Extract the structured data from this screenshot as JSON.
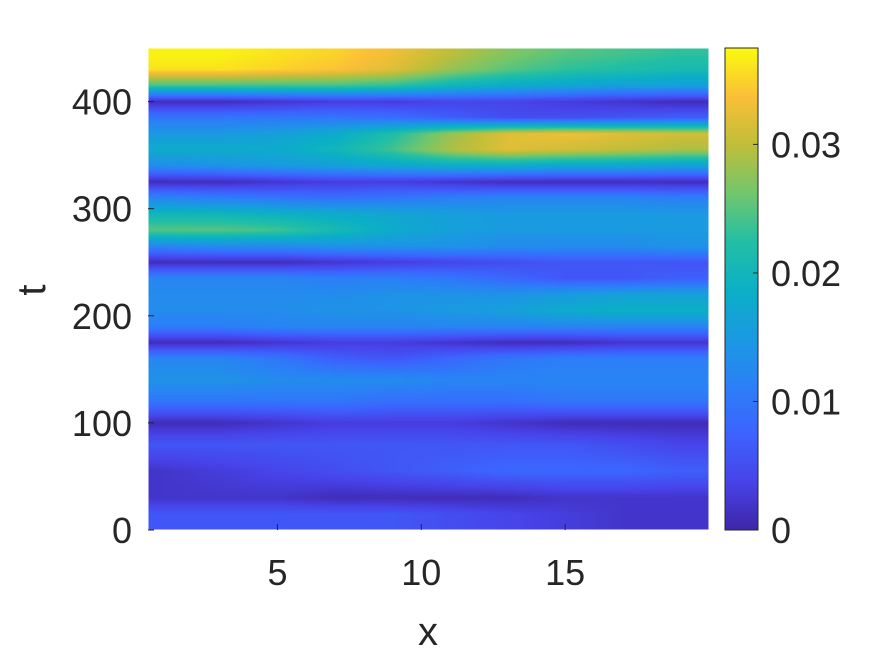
{
  "chart_data": {
    "type": "heatmap",
    "title": "",
    "xlabel": "x",
    "ylabel": "t",
    "xlim": [
      0.5,
      20
    ],
    "ylim": [
      0,
      450
    ],
    "x_ticks": [
      "5",
      "10",
      "15"
    ],
    "x_tick_values": [
      5,
      10,
      15
    ],
    "y_ticks": [
      "0",
      "100",
      "200",
      "300",
      "400"
    ],
    "y_tick_values": [
      0,
      100,
      200,
      300,
      400
    ],
    "colorbar": {
      "colormap": "parula",
      "range": [
        0,
        0.0375
      ],
      "ticks": [
        "0",
        "0.01",
        "0.02",
        "0.03"
      ],
      "tick_values": [
        0,
        0.01,
        0.02,
        0.03
      ]
    },
    "x": [
      1,
      3,
      5,
      7,
      9,
      11,
      13,
      15,
      17,
      19
    ],
    "y": [
      15,
      30,
      55,
      80,
      100,
      120,
      140,
      160,
      175,
      190,
      205,
      220,
      235,
      250,
      265,
      280,
      295,
      310,
      325,
      340,
      355,
      370,
      385,
      400,
      415,
      430,
      445
    ],
    "z": [
      [
        0.006,
        0.006,
        0.006,
        0.006,
        0.006,
        0.005,
        0.004,
        0.003,
        0.002,
        0.002
      ],
      [
        0.002,
        0.002,
        0.002,
        0.001,
        0.001,
        0.001,
        0.001,
        0.002,
        0.002,
        0.002
      ],
      [
        0.002,
        0.003,
        0.004,
        0.005,
        0.006,
        0.007,
        0.008,
        0.008,
        0.008,
        0.007
      ],
      [
        0.006,
        0.006,
        0.006,
        0.006,
        0.006,
        0.006,
        0.006,
        0.006,
        0.005,
        0.004
      ],
      [
        0.001,
        0.001,
        0.002,
        0.003,
        0.003,
        0.003,
        0.002,
        0.001,
        0.001,
        0.001
      ],
      [
        0.01,
        0.01,
        0.01,
        0.01,
        0.009,
        0.009,
        0.009,
        0.01,
        0.01,
        0.01
      ],
      [
        0.014,
        0.014,
        0.013,
        0.013,
        0.013,
        0.012,
        0.012,
        0.012,
        0.012,
        0.012
      ],
      [
        0.012,
        0.012,
        0.01,
        0.007,
        0.006,
        0.008,
        0.01,
        0.011,
        0.011,
        0.011
      ],
      [
        0.001,
        0.001,
        0.002,
        0.003,
        0.003,
        0.002,
        0.001,
        0.001,
        0.002,
        0.002
      ],
      [
        0.011,
        0.011,
        0.012,
        0.012,
        0.012,
        0.012,
        0.012,
        0.012,
        0.012,
        0.012
      ],
      [
        0.013,
        0.013,
        0.013,
        0.014,
        0.014,
        0.015,
        0.016,
        0.018,
        0.019,
        0.019
      ],
      [
        0.013,
        0.013,
        0.013,
        0.013,
        0.014,
        0.014,
        0.014,
        0.015,
        0.016,
        0.016
      ],
      [
        0.012,
        0.012,
        0.012,
        0.011,
        0.011,
        0.01,
        0.008,
        0.006,
        0.006,
        0.007
      ],
      [
        0.001,
        0.001,
        0.001,
        0.002,
        0.003,
        0.004,
        0.005,
        0.006,
        0.006,
        0.006
      ],
      [
        0.012,
        0.013,
        0.013,
        0.014,
        0.014,
        0.014,
        0.013,
        0.013,
        0.013,
        0.014
      ],
      [
        0.025,
        0.025,
        0.024,
        0.021,
        0.018,
        0.016,
        0.015,
        0.015,
        0.015,
        0.015
      ],
      [
        0.02,
        0.02,
        0.019,
        0.018,
        0.017,
        0.016,
        0.015,
        0.015,
        0.015,
        0.015
      ],
      [
        0.012,
        0.011,
        0.01,
        0.009,
        0.01,
        0.011,
        0.012,
        0.012,
        0.012,
        0.011
      ],
      [
        0.001,
        0.001,
        0.002,
        0.003,
        0.003,
        0.002,
        0.001,
        0.001,
        0.001,
        0.001
      ],
      [
        0.013,
        0.014,
        0.015,
        0.016,
        0.017,
        0.018,
        0.018,
        0.017,
        0.017,
        0.016
      ],
      [
        0.018,
        0.018,
        0.018,
        0.02,
        0.024,
        0.029,
        0.032,
        0.031,
        0.03,
        0.029
      ],
      [
        0.015,
        0.015,
        0.016,
        0.018,
        0.022,
        0.028,
        0.032,
        0.033,
        0.032,
        0.031
      ],
      [
        0.01,
        0.01,
        0.01,
        0.01,
        0.009,
        0.007,
        0.005,
        0.005,
        0.006,
        0.007
      ],
      [
        0.001,
        0.001,
        0.002,
        0.003,
        0.003,
        0.004,
        0.004,
        0.003,
        0.002,
        0.001
      ],
      [
        0.024,
        0.024,
        0.024,
        0.024,
        0.023,
        0.02,
        0.018,
        0.017,
        0.016,
        0.016
      ],
      [
        0.036,
        0.036,
        0.035,
        0.034,
        0.032,
        0.028,
        0.025,
        0.023,
        0.022,
        0.021
      ],
      [
        0.037,
        0.037,
        0.036,
        0.035,
        0.033,
        0.03,
        0.027,
        0.025,
        0.024,
        0.023
      ]
    ]
  }
}
